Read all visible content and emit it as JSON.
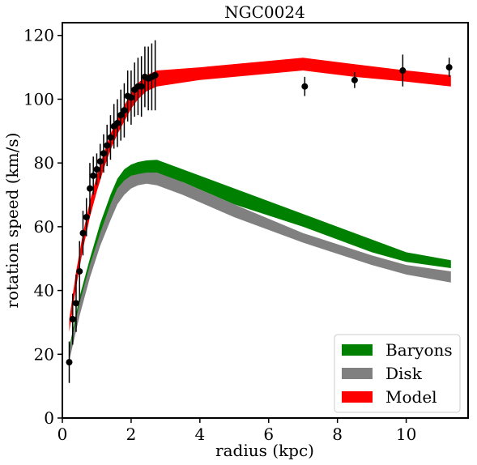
{
  "chart_data": {
    "type": "area",
    "title": "NGC0024",
    "xlabel": "radius (kpc)",
    "ylabel": "rotation speed (km/s)",
    "xlim": [
      0,
      11.8
    ],
    "ylim": [
      0,
      124
    ],
    "xticks": [
      0,
      2,
      4,
      6,
      8,
      10
    ],
    "yticks": [
      0,
      20,
      40,
      60,
      80,
      100,
      120
    ],
    "grid": false,
    "legend_position": "bottom-right",
    "bands": [
      {
        "name": "Baryons",
        "color": "#008000",
        "x": [
          0.2,
          0.5,
          0.8,
          1.1,
          1.4,
          1.6,
          1.8,
          2.0,
          2.2,
          2.45,
          2.75,
          3.5,
          5.0,
          7.0,
          9.0,
          10.0,
          11.3
        ],
        "upper": [
          22,
          38,
          50,
          61,
          70,
          75,
          78,
          79.5,
          80.3,
          80.8,
          81,
          78,
          72,
          64,
          56,
          52,
          49.5
        ],
        "lower": [
          19,
          34,
          46,
          56,
          64,
          69,
          72.5,
          74.5,
          75.5,
          76,
          76,
          74,
          67,
          60,
          52,
          49,
          47
        ]
      },
      {
        "name": "Disk",
        "color": "#808080",
        "x": [
          0.2,
          0.5,
          0.8,
          1.1,
          1.4,
          1.6,
          1.8,
          2.0,
          2.2,
          2.45,
          2.75,
          3.5,
          5.0,
          7.0,
          9.0,
          10.0,
          11.3
        ],
        "upper": [
          21,
          36,
          48,
          58,
          67,
          72,
          74.5,
          76,
          76.5,
          77,
          77,
          74,
          67,
          58,
          51,
          48,
          46
        ],
        "lower": [
          18,
          32,
          44,
          54,
          62,
          67,
          70,
          72,
          73,
          73.5,
          73,
          70,
          63,
          55,
          48,
          45,
          42.5
        ]
      },
      {
        "name": "Model",
        "color": "#ff0000",
        "x": [
          0.2,
          0.4,
          0.6,
          0.8,
          1.0,
          1.2,
          1.4,
          1.6,
          1.8,
          2.0,
          2.2,
          2.45,
          2.75,
          4.0,
          7.0,
          8.5,
          10.0,
          11.3
        ],
        "upper": [
          31,
          46,
          58,
          68,
          76,
          83,
          89,
          94,
          98,
          102,
          105,
          107.5,
          109,
          110,
          113,
          111,
          109,
          107.5
        ],
        "lower": [
          27,
          41,
          53,
          63,
          71,
          78,
          84,
          89,
          93,
          97,
          100,
          102.5,
          104,
          106,
          109,
          107,
          105.5,
          104
        ]
      }
    ],
    "observed": {
      "name": "data",
      "color": "#000000",
      "x": [
        0.2,
        0.3,
        0.4,
        0.5,
        0.6,
        0.7,
        0.8,
        0.9,
        1.0,
        1.1,
        1.2,
        1.3,
        1.4,
        1.5,
        1.6,
        1.7,
        1.8,
        1.9,
        2.0,
        2.1,
        2.2,
        2.3,
        2.4,
        2.5,
        2.6,
        2.7,
        7.05,
        8.5,
        9.9,
        11.25
      ],
      "y": [
        17.5,
        31,
        36,
        46,
        58,
        63,
        72,
        76,
        78,
        80.5,
        83,
        85.5,
        88,
        91.5,
        92.5,
        95,
        96.5,
        101,
        100.5,
        103,
        104,
        104,
        107,
        106.5,
        107,
        107.5,
        104,
        106,
        109,
        110
      ],
      "err": [
        6.5,
        8,
        9,
        9.5,
        7,
        6,
        8,
        6,
        5,
        5.5,
        6,
        6.5,
        7,
        7,
        7.5,
        8,
        8.5,
        8,
        8.5,
        8.5,
        9,
        9.5,
        9.5,
        10,
        10.5,
        11,
        3,
        2.5,
        5,
        3
      ]
    },
    "legend": [
      "Baryons",
      "Disk",
      "Model"
    ]
  }
}
